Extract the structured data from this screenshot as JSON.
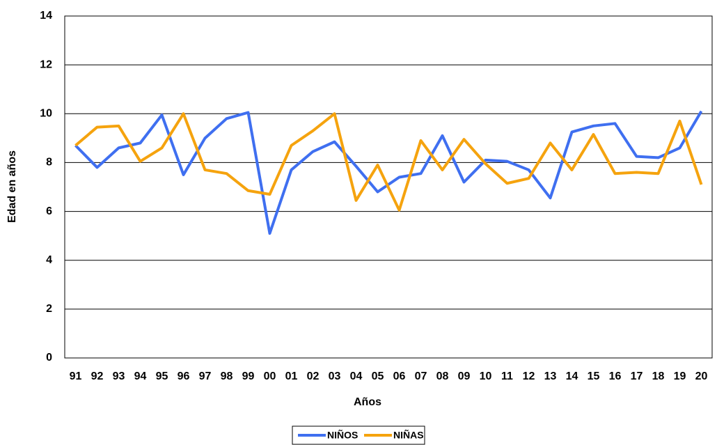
{
  "chart_data": {
    "type": "line",
    "x_label": "Años",
    "y_label": "Edad en años",
    "categories": [
      "91",
      "92",
      "93",
      "94",
      "95",
      "96",
      "97",
      "98",
      "99",
      "00",
      "01",
      "02",
      "03",
      "04",
      "05",
      "06",
      "07",
      "08",
      "09",
      "10",
      "11",
      "12",
      "13",
      "14",
      "15",
      "16",
      "17",
      "18",
      "19",
      "20"
    ],
    "series": [
      {
        "name": "NIÑOS",
        "color": "#3f6ff0",
        "values": [
          8.7,
          7.8,
          8.6,
          8.8,
          9.95,
          7.5,
          9.0,
          9.8,
          10.05,
          5.1,
          7.7,
          8.45,
          8.85,
          7.85,
          6.8,
          7.4,
          7.55,
          9.1,
          7.2,
          8.1,
          8.05,
          7.7,
          6.55,
          9.25,
          9.5,
          9.6,
          8.25,
          8.2,
          8.6,
          10.1
        ]
      },
      {
        "name": "NIÑAS",
        "color": "#f5a30e",
        "values": [
          8.7,
          9.45,
          9.5,
          8.05,
          8.6,
          10.0,
          7.7,
          7.55,
          6.85,
          6.7,
          8.7,
          9.3,
          10.0,
          6.45,
          7.9,
          6.05,
          8.9,
          7.7,
          8.95,
          7.95,
          7.15,
          7.35,
          8.8,
          7.7,
          9.15,
          7.55,
          7.6,
          7.55,
          9.7,
          7.1
        ]
      }
    ],
    "ylim": [
      0,
      14
    ],
    "yticks": [
      0,
      2,
      4,
      6,
      8,
      10,
      12,
      14
    ],
    "grid": true,
    "legend": "bottom"
  }
}
